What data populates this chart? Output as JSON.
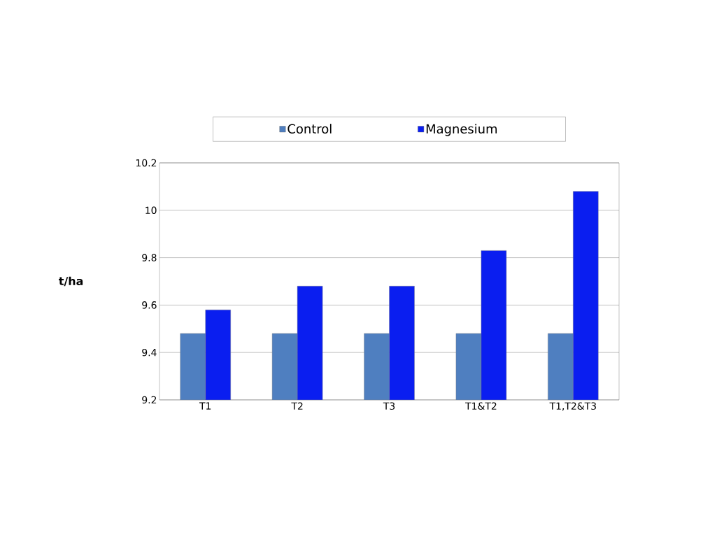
{
  "chart_data": {
    "type": "bar",
    "ylabel": "t/ha",
    "categories": [
      "T1",
      "T2",
      "T3",
      "T1&T2",
      "T1,T2&T3"
    ],
    "series": [
      {
        "name": "Control",
        "color": "#4f7fc0",
        "values": [
          9.48,
          9.48,
          9.48,
          9.48,
          9.48
        ]
      },
      {
        "name": "Magnesium",
        "color": "#0a1ef0",
        "values": [
          9.58,
          9.68,
          9.68,
          9.83,
          10.08
        ]
      }
    ],
    "ylim": [
      9.2,
      10.2
    ],
    "yticks": [
      9.2,
      9.4,
      9.6,
      9.8,
      10,
      10.2
    ],
    "grid": "y",
    "legend": "top"
  }
}
